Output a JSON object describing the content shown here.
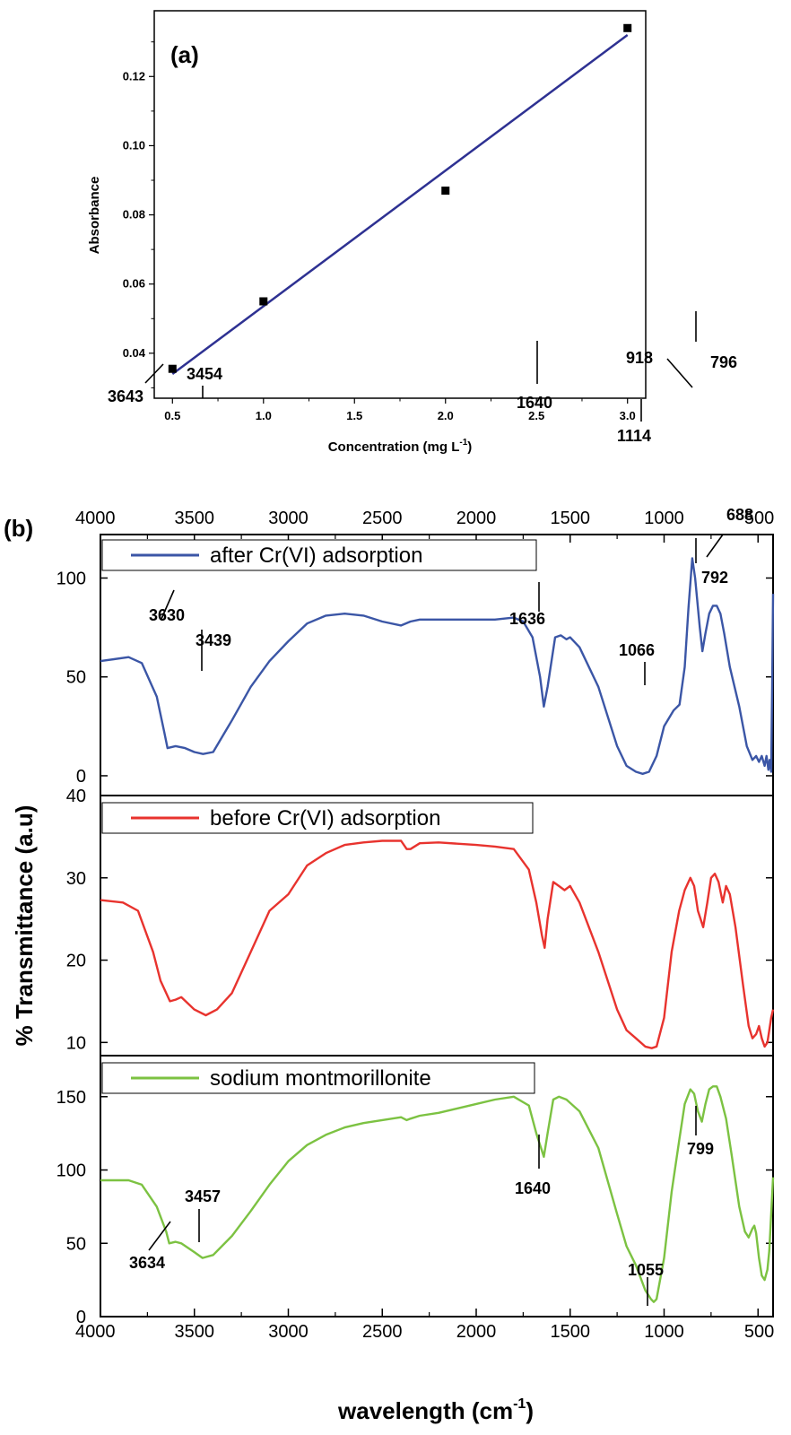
{
  "chart_data": [
    {
      "type": "scatter",
      "panel_label": "(a)",
      "xlabel": "Concentration (mg L",
      "xlabel_sup": "-1",
      "xlabel_end": ")",
      "ylabel": "Absorbance",
      "xlim": [
        0.4,
        3.1
      ],
      "ylim": [
        0.027,
        0.139
      ],
      "xticks": [
        "0.5",
        "1.0",
        "1.5",
        "2.0",
        "2.5",
        "3.0"
      ],
      "yticks": [
        "0.04",
        "0.06",
        "0.08",
        "0.10",
        "0.12"
      ],
      "points": [
        {
          "x": 0.5,
          "y": 0.0355
        },
        {
          "x": 1.0,
          "y": 0.055
        },
        {
          "x": 2.0,
          "y": 0.087
        },
        {
          "x": 3.0,
          "y": 0.134
        }
      ],
      "fit_line": {
        "x": [
          0.5,
          3.0
        ],
        "y": [
          0.034,
          0.132
        ]
      },
      "colors": {
        "line": "#2e3192",
        "marker": "#000000"
      }
    },
    {
      "type": "line",
      "panel_label": "(b)",
      "xlabel": "wavelength (cm",
      "xlabel_sup": "-1",
      "xlabel_end": ")",
      "ylabel": "% Transmittance (a.u)",
      "xlim": [
        4000,
        420
      ],
      "xticks": [
        "4000",
        "3500",
        "3000",
        "2500",
        "2000",
        "1500",
        "1000",
        "500"
      ],
      "series": [
        {
          "name": "after Cr(VI) adsorption",
          "color": "#3b56a6",
          "ylim": [
            -10,
            122
          ],
          "yticks": [
            "0",
            "50",
            "100"
          ],
          "points": [
            [
              4000,
              58
            ],
            [
              3850,
              60
            ],
            [
              3780,
              57
            ],
            [
              3700,
              40
            ],
            [
              3660,
              22
            ],
            [
              3643,
              14
            ],
            [
              3600,
              15
            ],
            [
              3550,
              14
            ],
            [
              3500,
              12
            ],
            [
              3454,
              11
            ],
            [
              3400,
              12
            ],
            [
              3300,
              28
            ],
            [
              3200,
              45
            ],
            [
              3100,
              58
            ],
            [
              3000,
              68
            ],
            [
              2900,
              77
            ],
            [
              2800,
              81
            ],
            [
              2700,
              82
            ],
            [
              2600,
              81
            ],
            [
              2500,
              78
            ],
            [
              2400,
              76
            ],
            [
              2350,
              78
            ],
            [
              2300,
              79
            ],
            [
              2200,
              79
            ],
            [
              2000,
              79
            ],
            [
              1900,
              79
            ],
            [
              1800,
              80
            ],
            [
              1750,
              78
            ],
            [
              1700,
              70
            ],
            [
              1660,
              50
            ],
            [
              1640,
              35
            ],
            [
              1620,
              45
            ],
            [
              1580,
              70
            ],
            [
              1550,
              71
            ],
            [
              1520,
              69
            ],
            [
              1500,
              70
            ],
            [
              1450,
              65
            ],
            [
              1350,
              45
            ],
            [
              1250,
              15
            ],
            [
              1200,
              5
            ],
            [
              1150,
              2
            ],
            [
              1114,
              1
            ],
            [
              1080,
              2
            ],
            [
              1040,
              10
            ],
            [
              1000,
              25
            ],
            [
              950,
              33
            ],
            [
              918,
              36
            ],
            [
              890,
              55
            ],
            [
              870,
              85
            ],
            [
              850,
              110
            ],
            [
              835,
              100
            ],
            [
              810,
              75
            ],
            [
              796,
              63
            ],
            [
              780,
              72
            ],
            [
              760,
              82
            ],
            [
              740,
              86
            ],
            [
              720,
              86
            ],
            [
              700,
              82
            ],
            [
              680,
              72
            ],
            [
              650,
              55
            ],
            [
              600,
              35
            ],
            [
              560,
              15
            ],
            [
              530,
              8
            ],
            [
              510,
              10
            ],
            [
              495,
              7
            ],
            [
              480,
              10
            ],
            [
              465,
              5
            ],
            [
              455,
              10
            ],
            [
              445,
              3
            ],
            [
              438,
              8
            ],
            [
              430,
              2
            ],
            [
              425,
              45
            ],
            [
              420,
              92
            ]
          ]
        },
        {
          "name": "before Cr(VI) adsorption",
          "color": "#e8332e",
          "ylim": [
            8.4,
            40
          ],
          "yticks": [
            "10",
            "20",
            "30",
            "40"
          ],
          "points": [
            [
              4000,
              27.3
            ],
            [
              3880,
              27
            ],
            [
              3800,
              26
            ],
            [
              3720,
              21
            ],
            [
              3680,
              17.5
            ],
            [
              3630,
              15
            ],
            [
              3600,
              15.2
            ],
            [
              3570,
              15.5
            ],
            [
              3500,
              14
            ],
            [
              3439,
              13.3
            ],
            [
              3380,
              14
            ],
            [
              3300,
              16
            ],
            [
              3200,
              21
            ],
            [
              3100,
              26
            ],
            [
              3000,
              28
            ],
            [
              2900,
              31.5
            ],
            [
              2800,
              33
            ],
            [
              2700,
              34
            ],
            [
              2600,
              34.3
            ],
            [
              2500,
              34.5
            ],
            [
              2400,
              34.5
            ],
            [
              2370,
              33.5
            ],
            [
              2350,
              33.5
            ],
            [
              2300,
              34.2
            ],
            [
              2200,
              34.3
            ],
            [
              2000,
              34
            ],
            [
              1900,
              33.8
            ],
            [
              1800,
              33.5
            ],
            [
              1720,
              31
            ],
            [
              1680,
              27
            ],
            [
              1650,
              23
            ],
            [
              1636,
              21.5
            ],
            [
              1620,
              25
            ],
            [
              1590,
              29.5
            ],
            [
              1560,
              29
            ],
            [
              1530,
              28.5
            ],
            [
              1500,
              29
            ],
            [
              1450,
              27
            ],
            [
              1350,
              21
            ],
            [
              1250,
              14
            ],
            [
              1200,
              11.5
            ],
            [
              1150,
              10.5
            ],
            [
              1100,
              9.5
            ],
            [
              1066,
              9.3
            ],
            [
              1040,
              9.5
            ],
            [
              1000,
              13
            ],
            [
              960,
              21
            ],
            [
              920,
              26
            ],
            [
              890,
              28.5
            ],
            [
              860,
              30
            ],
            [
              840,
              29
            ],
            [
              820,
              26
            ],
            [
              792,
              24
            ],
            [
              770,
              27
            ],
            [
              750,
              30
            ],
            [
              730,
              30.5
            ],
            [
              710,
              29.5
            ],
            [
              688,
              27
            ],
            [
              670,
              29
            ],
            [
              650,
              28
            ],
            [
              620,
              24
            ],
            [
              580,
              17
            ],
            [
              550,
              12
            ],
            [
              530,
              10.5
            ],
            [
              510,
              11
            ],
            [
              495,
              12
            ],
            [
              480,
              10.5
            ],
            [
              465,
              9.5
            ],
            [
              450,
              10
            ],
            [
              440,
              11.5
            ],
            [
              430,
              13
            ],
            [
              420,
              14
            ]
          ]
        },
        {
          "name": "sodium  montmorillonite",
          "color": "#7cc242",
          "ylim": [
            0,
            178
          ],
          "yticks": [
            "0",
            "50",
            "100",
            "150"
          ],
          "points": [
            [
              4000,
              93
            ],
            [
              3850,
              93
            ],
            [
              3780,
              90
            ],
            [
              3700,
              75
            ],
            [
              3650,
              58
            ],
            [
              3634,
              50
            ],
            [
              3600,
              51
            ],
            [
              3570,
              50
            ],
            [
              3500,
              44
            ],
            [
              3457,
              40
            ],
            [
              3400,
              42
            ],
            [
              3300,
              55
            ],
            [
              3200,
              72
            ],
            [
              3100,
              90
            ],
            [
              3000,
              106
            ],
            [
              2900,
              117
            ],
            [
              2800,
              124
            ],
            [
              2700,
              129
            ],
            [
              2600,
              132
            ],
            [
              2500,
              134
            ],
            [
              2400,
              136
            ],
            [
              2370,
              134
            ],
            [
              2350,
              135
            ],
            [
              2300,
              137
            ],
            [
              2200,
              139
            ],
            [
              2000,
              145
            ],
            [
              1900,
              148
            ],
            [
              1800,
              150
            ],
            [
              1720,
              144
            ],
            [
              1680,
              125
            ],
            [
              1640,
              109
            ],
            [
              1620,
              125
            ],
            [
              1590,
              148
            ],
            [
              1560,
              150
            ],
            [
              1520,
              148
            ],
            [
              1450,
              140
            ],
            [
              1350,
              115
            ],
            [
              1250,
              70
            ],
            [
              1200,
              48
            ],
            [
              1150,
              35
            ],
            [
              1100,
              18
            ],
            [
              1070,
              12
            ],
            [
              1055,
              10
            ],
            [
              1040,
              12
            ],
            [
              1000,
              40
            ],
            [
              960,
              85
            ],
            [
              920,
              120
            ],
            [
              890,
              145
            ],
            [
              860,
              155
            ],
            [
              840,
              152
            ],
            [
              820,
              140
            ],
            [
              799,
              133
            ],
            [
              780,
              145
            ],
            [
              760,
              155
            ],
            [
              740,
              157
            ],
            [
              720,
              157
            ],
            [
              700,
              150
            ],
            [
              670,
              135
            ],
            [
              640,
              110
            ],
            [
              600,
              75
            ],
            [
              570,
              58
            ],
            [
              550,
              54
            ],
            [
              530,
              60
            ],
            [
              520,
              62
            ],
            [
              510,
              57
            ],
            [
              495,
              40
            ],
            [
              480,
              28
            ],
            [
              465,
              25
            ],
            [
              450,
              32
            ],
            [
              440,
              45
            ],
            [
              430,
              70
            ],
            [
              420,
              95
            ]
          ]
        }
      ],
      "annotations": [
        {
          "text": "3643",
          "panel": 0
        },
        {
          "text": "3454",
          "panel": 0
        },
        {
          "text": "1640",
          "panel": 0
        },
        {
          "text": "1114",
          "panel": 0
        },
        {
          "text": "918",
          "panel": 0
        },
        {
          "text": "796",
          "panel": 0
        },
        {
          "text": "3630",
          "panel": 1
        },
        {
          "text": "3439",
          "panel": 1
        },
        {
          "text": "1636",
          "panel": 1
        },
        {
          "text": "1066",
          "panel": 1
        },
        {
          "text": "792",
          "panel": 1
        },
        {
          "text": "688",
          "panel": 1
        },
        {
          "text": "3634",
          "panel": 2
        },
        {
          "text": "3457",
          "panel": 2
        },
        {
          "text": "1640",
          "panel": 2
        },
        {
          "text": "1055",
          "panel": 2
        },
        {
          "text": "799",
          "panel": 2
        }
      ]
    }
  ]
}
